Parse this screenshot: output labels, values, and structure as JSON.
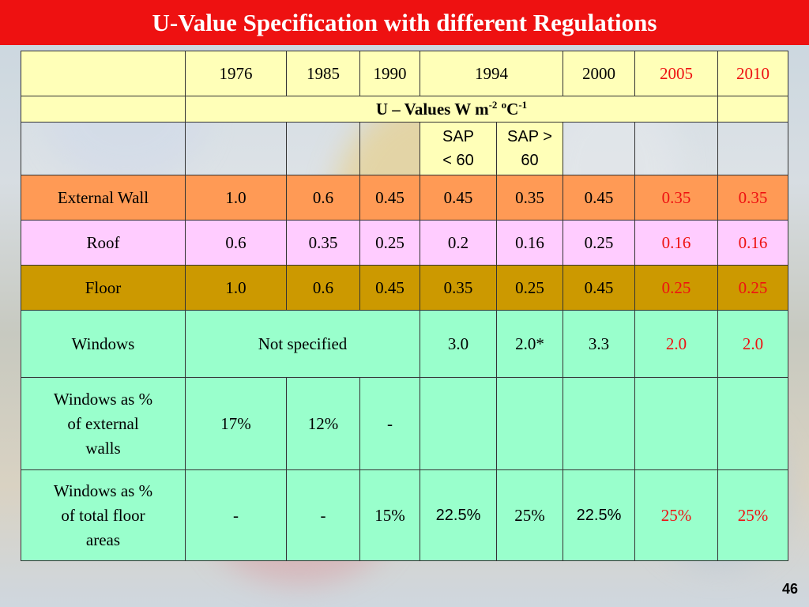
{
  "title": "U-Value Specification with different Regulations",
  "colors": {
    "title_bg": "#ee1111",
    "accent_red": "#ee1111",
    "header_bg": "#ffffb8",
    "wall_bg": "#ff9a55",
    "roof_bg": "#ffccff",
    "floor_bg": "#cc9900",
    "window_bg": "#99ffcc"
  },
  "table": {
    "years": [
      "1976",
      "1985",
      "1990",
      "1994",
      "2000",
      "2005",
      "2010"
    ],
    "units": {
      "label": "U – Values    W m",
      "exp1": "-2",
      "deg": "o",
      "c": "C",
      "exp2": "-1"
    },
    "sap": {
      "low_line1": "SAP",
      "low_line2": "< 60",
      "high_line1": "SAP >",
      "high_line2": "60"
    },
    "rows": {
      "external_wall": {
        "label": "External Wall",
        "values": [
          "1.0",
          "0.6",
          "0.45",
          "0.45",
          "0.35",
          "0.45",
          "0.35",
          "0.35"
        ]
      },
      "roof": {
        "label": "Roof",
        "values": [
          "0.6",
          "0.35",
          "0.25",
          "0.2",
          "0.16",
          "0.25",
          "0.16",
          "0.16"
        ]
      },
      "floor": {
        "label": "Floor",
        "values": [
          "1.0",
          "0.6",
          "0.45",
          "0.35",
          "0.25",
          "0.45",
          "0.25",
          "0.25"
        ]
      },
      "windows": {
        "label": "Windows",
        "not_specified": "Not specified",
        "values": [
          "3.0",
          "2.0*",
          "3.3",
          "2.0",
          "2.0"
        ]
      },
      "windows_ext_walls": {
        "label_line1": "Windows as %",
        "label_line2": "of external",
        "label_line3": "walls",
        "values": [
          "17%",
          "12%",
          "-"
        ]
      },
      "windows_floor": {
        "label_line1": "Windows as %",
        "label_line2": "of total floor",
        "label_line3": "areas",
        "values": [
          "-",
          "-",
          "15%",
          "22.5%",
          "25%",
          "22.5%",
          "25%",
          "25%"
        ]
      }
    }
  },
  "page_number": "46"
}
